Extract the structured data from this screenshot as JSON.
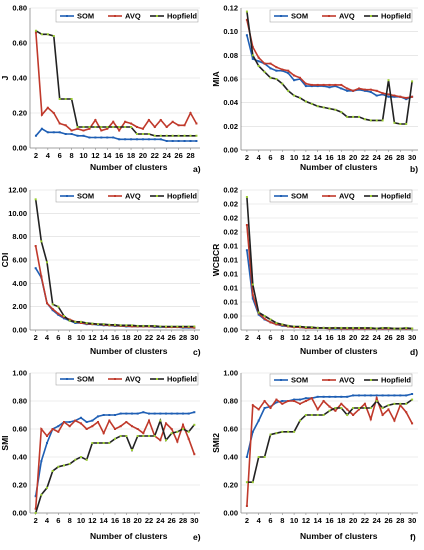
{
  "chart_data": [
    {
      "type": "line",
      "panel_label": "a)",
      "ylabel": "J",
      "xlabel": "Number of clusters",
      "ylim": [
        0,
        0.8
      ],
      "yticks": [
        "0.00",
        "0.20",
        "0.40",
        "0.60",
        "0.80"
      ],
      "ytick_values": [
        0,
        0.2,
        0.4,
        0.6,
        0.8
      ],
      "xlim": [
        1,
        29.6
      ],
      "xticks": [
        "2",
        "4",
        "6",
        "8",
        "10",
        "12",
        "14",
        "16",
        "18",
        "20",
        "22",
        "24",
        "26",
        "28"
      ],
      "xtick_values": [
        2,
        4,
        6,
        8,
        10,
        12,
        14,
        16,
        18,
        20,
        22,
        24,
        26,
        28
      ],
      "legend": [
        "SOM",
        "AVQ",
        "Hopfield"
      ],
      "legend_placement": "top-right",
      "x": [
        2,
        3,
        4,
        5,
        6,
        7,
        8,
        9,
        10,
        11,
        12,
        13,
        14,
        15,
        16,
        17,
        18,
        19,
        20,
        21,
        22,
        23,
        24,
        25,
        26,
        27,
        28,
        29
      ],
      "series": [
        {
          "name": "SOM",
          "color": "#1f5fb4",
          "values": [
            0.07,
            0.11,
            0.09,
            0.09,
            0.09,
            0.08,
            0.08,
            0.07,
            0.07,
            0.06,
            0.06,
            0.06,
            0.06,
            0.06,
            0.05,
            0.05,
            0.05,
            0.05,
            0.05,
            0.05,
            0.05,
            0.05,
            0.04,
            0.04,
            0.04,
            0.04,
            0.04,
            0.04
          ]
        },
        {
          "name": "AVQ",
          "color": "#c0392b",
          "values": [
            0.66,
            0.19,
            0.23,
            0.2,
            0.14,
            0.13,
            0.1,
            0.11,
            0.1,
            0.11,
            0.16,
            0.1,
            0.11,
            0.15,
            0.1,
            0.15,
            0.14,
            0.12,
            0.11,
            0.16,
            0.12,
            0.16,
            0.12,
            0.15,
            0.13,
            0.13,
            0.2,
            0.14
          ]
        },
        {
          "name": "Hopfield",
          "color": "#222222",
          "values": [
            0.67,
            0.65,
            0.65,
            0.64,
            0.28,
            0.28,
            0.28,
            0.12,
            0.12,
            0.12,
            0.12,
            0.12,
            0.12,
            0.12,
            0.12,
            0.12,
            0.12,
            0.08,
            0.08,
            0.08,
            0.07,
            0.07,
            0.07,
            0.07,
            0.07,
            0.07,
            0.07,
            0.07
          ]
        }
      ]
    },
    {
      "type": "line",
      "panel_label": "b)",
      "ylabel": "MIA",
      "xlabel": "Number of clusters",
      "ylim": [
        0,
        0.12
      ],
      "yticks": [
        "0.00",
        "0.02",
        "0.04",
        "0.06",
        "0.08",
        "0.10",
        "0.12"
      ],
      "ytick_values": [
        0,
        0.02,
        0.04,
        0.06,
        0.08,
        0.1,
        0.12
      ],
      "xlim": [
        1,
        31
      ],
      "xticks": [
        "2",
        "4",
        "6",
        "8",
        "10",
        "12",
        "14",
        "16",
        "18",
        "20",
        "22",
        "24",
        "26",
        "28",
        "30"
      ],
      "xtick_values": [
        2,
        4,
        6,
        8,
        10,
        12,
        14,
        16,
        18,
        20,
        22,
        24,
        26,
        28,
        30
      ],
      "legend": [
        "SOM",
        "AVQ",
        "Hopfield"
      ],
      "legend_placement": "top-right",
      "x": [
        2,
        3,
        4,
        5,
        6,
        7,
        8,
        9,
        10,
        11,
        12,
        13,
        14,
        15,
        16,
        17,
        18,
        19,
        20,
        21,
        22,
        23,
        24,
        25,
        26,
        27,
        28,
        29,
        30
      ],
      "series": [
        {
          "name": "SOM",
          "color": "#1f5fb4",
          "values": [
            0.097,
            0.077,
            0.075,
            0.073,
            0.069,
            0.067,
            0.067,
            0.065,
            0.059,
            0.06,
            0.054,
            0.054,
            0.054,
            0.054,
            0.053,
            0.054,
            0.052,
            0.05,
            0.05,
            0.051,
            0.05,
            0.049,
            0.046,
            0.047,
            0.045,
            0.045,
            0.045,
            0.043,
            0.045
          ]
        },
        {
          "name": "AVQ",
          "color": "#c0392b",
          "values": [
            0.11,
            0.087,
            0.078,
            0.073,
            0.073,
            0.07,
            0.068,
            0.067,
            0.063,
            0.061,
            0.056,
            0.055,
            0.055,
            0.055,
            0.055,
            0.055,
            0.055,
            0.052,
            0.05,
            0.052,
            0.051,
            0.051,
            0.05,
            0.048,
            0.047,
            0.046,
            0.045,
            0.044,
            0.045
          ]
        },
        {
          "name": "Hopfield",
          "color": "#222222",
          "values": [
            0.117,
            0.08,
            0.071,
            0.066,
            0.061,
            0.06,
            0.056,
            0.05,
            0.046,
            0.044,
            0.041,
            0.039,
            0.037,
            0.036,
            0.035,
            0.034,
            0.032,
            0.028,
            0.028,
            0.028,
            0.026,
            0.025,
            0.025,
            0.025,
            0.059,
            0.023,
            0.022,
            0.022,
            0.058
          ]
        }
      ]
    },
    {
      "type": "line",
      "panel_label": "c)",
      "ylabel": "CDI",
      "xlabel": "Number of clusters",
      "ylim": [
        0,
        12
      ],
      "yticks": [
        "0.00",
        "2.00",
        "4.00",
        "6.00",
        "8.00",
        "10.00",
        "12.00"
      ],
      "ytick_values": [
        0,
        2,
        4,
        6,
        8,
        10,
        12
      ],
      "xlim": [
        1,
        31
      ],
      "xticks": [
        "2",
        "4",
        "6",
        "8",
        "10",
        "12",
        "14",
        "16",
        "18",
        "20",
        "22",
        "24",
        "26",
        "28",
        "30"
      ],
      "xtick_values": [
        2,
        4,
        6,
        8,
        10,
        12,
        14,
        16,
        18,
        20,
        22,
        24,
        26,
        28,
        30
      ],
      "legend": [
        "SOM",
        "AVQ",
        "Hopfield"
      ],
      "legend_placement": "top-right",
      "x": [
        2,
        3,
        4,
        5,
        6,
        7,
        8,
        9,
        10,
        11,
        12,
        13,
        14,
        15,
        16,
        17,
        18,
        19,
        20,
        21,
        22,
        23,
        24,
        25,
        26,
        27,
        28,
        29,
        30
      ],
      "series": [
        {
          "name": "SOM",
          "color": "#1f5fb4",
          "values": [
            5.3,
            4.5,
            2.3,
            1.7,
            1.3,
            1.0,
            0.8,
            0.6,
            0.6,
            0.5,
            0.5,
            0.45,
            0.4,
            0.4,
            0.35,
            0.35,
            0.3,
            0.3,
            0.3,
            0.3,
            0.3,
            0.25,
            0.25,
            0.25,
            0.25,
            0.25,
            0.2,
            0.2,
            0.2
          ]
        },
        {
          "name": "AVQ",
          "color": "#c0392b",
          "values": [
            7.2,
            4.6,
            2.3,
            1.8,
            1.4,
            1.1,
            0.9,
            0.7,
            0.6,
            0.55,
            0.5,
            0.5,
            0.45,
            0.4,
            0.4,
            0.35,
            0.35,
            0.3,
            0.3,
            0.3,
            0.3,
            0.3,
            0.3,
            0.25,
            0.25,
            0.25,
            0.25,
            0.25,
            0.2
          ]
        },
        {
          "name": "Hopfield",
          "color": "#222222",
          "values": [
            11.2,
            7.6,
            5.8,
            2.2,
            2.0,
            1.2,
            0.8,
            0.7,
            0.7,
            0.6,
            0.55,
            0.5,
            0.5,
            0.45,
            0.45,
            0.4,
            0.4,
            0.4,
            0.35,
            0.35,
            0.35,
            0.35,
            0.3,
            0.3,
            0.3,
            0.3,
            0.3,
            0.3,
            0.3
          ]
        }
      ]
    },
    {
      "type": "line",
      "panel_label": "d)",
      "ylabel": "WCBCR",
      "xlabel": "Number of clusters",
      "ylim": [
        0,
        0.02
      ],
      "yticks": [
        "0.00",
        "0.00",
        "0.01",
        "0.01",
        "0.01",
        "0.01",
        "0.01",
        "0.02",
        "0.02",
        "0.02",
        "0.02"
      ],
      "ytick_values": [
        0,
        0.002,
        0.004,
        0.006,
        0.008,
        0.01,
        0.012,
        0.014,
        0.016,
        0.018,
        0.02
      ],
      "xlim": [
        1,
        31
      ],
      "xticks": [
        "2",
        "4",
        "6",
        "8",
        "10",
        "12",
        "14",
        "16",
        "18",
        "20",
        "22",
        "24",
        "26",
        "28",
        "30"
      ],
      "xtick_values": [
        2,
        4,
        6,
        8,
        10,
        12,
        14,
        16,
        18,
        20,
        22,
        24,
        26,
        28,
        30
      ],
      "legend": [
        "SOM",
        "AVQ",
        "Hopfield"
      ],
      "legend_placement": "top-right",
      "x": [
        2,
        3,
        4,
        5,
        6,
        7,
        8,
        9,
        10,
        11,
        12,
        13,
        14,
        15,
        16,
        17,
        18,
        19,
        20,
        21,
        22,
        23,
        24,
        25,
        26,
        27,
        28,
        29,
        30
      ],
      "series": [
        {
          "name": "SOM",
          "color": "#1f5fb4",
          "values": [
            0.0114,
            0.0045,
            0.0022,
            0.0015,
            0.0011,
            0.0008,
            0.0006,
            0.0005,
            0.0004,
            0.0004,
            0.0003,
            0.0003,
            0.0003,
            0.0003,
            0.0002,
            0.0002,
            0.0002,
            0.0002,
            0.0002,
            0.0002,
            0.0002,
            0.0002,
            0.0002,
            0.0002,
            0.0002,
            0.0002,
            0.0002,
            0.0002,
            0.0002
          ]
        },
        {
          "name": "AVQ",
          "color": "#c0392b",
          "values": [
            0.015,
            0.005,
            0.0024,
            0.0016,
            0.0011,
            0.0008,
            0.0007,
            0.0005,
            0.0004,
            0.0004,
            0.0003,
            0.0003,
            0.0003,
            0.0003,
            0.0002,
            0.0003,
            0.0002,
            0.0002,
            0.0002,
            0.0002,
            0.0002,
            0.0002,
            0.0002,
            0.0002,
            0.0002,
            0.0002,
            0.0002,
            0.0002,
            0.0002
          ]
        },
        {
          "name": "Hopfield",
          "color": "#222222",
          "values": [
            0.019,
            0.0065,
            0.0025,
            0.002,
            0.0015,
            0.001,
            0.0008,
            0.0006,
            0.0005,
            0.0005,
            0.0004,
            0.0004,
            0.0003,
            0.0003,
            0.0003,
            0.0003,
            0.0003,
            0.0003,
            0.0003,
            0.0003,
            0.0003,
            0.0003,
            0.0002,
            0.0003,
            0.0003,
            0.0002,
            0.0002,
            0.0003,
            0.0002
          ]
        }
      ]
    },
    {
      "type": "line",
      "panel_label": "e)",
      "ylabel": "SMI",
      "xlabel": "Number of clusters",
      "ylim": [
        0,
        1.0
      ],
      "yticks": [
        "0.00",
        "0.20",
        "0.40",
        "0.60",
        "0.80",
        "1.00"
      ],
      "ytick_values": [
        0,
        0.2,
        0.4,
        0.6,
        0.8,
        1.0
      ],
      "xlim": [
        1,
        31
      ],
      "xticks": [
        "2",
        "4",
        "6",
        "8",
        "10",
        "12",
        "14",
        "16",
        "18",
        "20",
        "22",
        "24",
        "26",
        "28",
        "30"
      ],
      "xtick_values": [
        2,
        4,
        6,
        8,
        10,
        12,
        14,
        16,
        18,
        20,
        22,
        24,
        26,
        28,
        30
      ],
      "legend": [
        "SOM",
        "AVQ",
        "Hopfield"
      ],
      "legend_placement": "top-right",
      "x": [
        2,
        3,
        4,
        5,
        6,
        7,
        8,
        9,
        10,
        11,
        12,
        13,
        14,
        15,
        16,
        17,
        18,
        19,
        20,
        21,
        22,
        23,
        24,
        25,
        26,
        27,
        28,
        29,
        30
      ],
      "series": [
        {
          "name": "SOM",
          "color": "#1f5fb4",
          "values": [
            0.12,
            0.37,
            0.5,
            0.6,
            0.62,
            0.65,
            0.65,
            0.66,
            0.68,
            0.65,
            0.66,
            0.69,
            0.7,
            0.7,
            0.7,
            0.71,
            0.71,
            0.71,
            0.71,
            0.72,
            0.71,
            0.71,
            0.71,
            0.71,
            0.71,
            0.71,
            0.71,
            0.71,
            0.72
          ]
        },
        {
          "name": "AVQ",
          "color": "#c0392b",
          "values": [
            0.03,
            0.6,
            0.55,
            0.6,
            0.58,
            0.65,
            0.62,
            0.66,
            0.64,
            0.6,
            0.62,
            0.65,
            0.57,
            0.66,
            0.6,
            0.62,
            0.65,
            0.62,
            0.6,
            0.57,
            0.66,
            0.55,
            0.52,
            0.64,
            0.6,
            0.51,
            0.63,
            0.53,
            0.42
          ]
        },
        {
          "name": "Hopfield",
          "color": "#222222",
          "values": [
            0.0,
            0.13,
            0.18,
            0.3,
            0.33,
            0.34,
            0.35,
            0.38,
            0.4,
            0.38,
            0.5,
            0.5,
            0.5,
            0.5,
            0.53,
            0.55,
            0.55,
            0.45,
            0.55,
            0.55,
            0.55,
            0.55,
            0.66,
            0.52,
            0.57,
            0.58,
            0.6,
            0.58,
            0.63
          ]
        }
      ]
    },
    {
      "type": "line",
      "panel_label": "f)",
      "ylabel": "SMI2",
      "xlabel": "Number of clusters",
      "ylim": [
        0,
        1.0
      ],
      "yticks": [
        "0.00",
        "0.20",
        "0.40",
        "0.60",
        "0.80",
        "1.00"
      ],
      "ytick_values": [
        0,
        0.2,
        0.4,
        0.6,
        0.8,
        1.0
      ],
      "xlim": [
        1,
        31
      ],
      "xticks": [
        "2",
        "4",
        "6",
        "8",
        "10",
        "12",
        "14",
        "16",
        "18",
        "20",
        "22",
        "24",
        "26",
        "28",
        "30"
      ],
      "xtick_values": [
        2,
        4,
        6,
        8,
        10,
        12,
        14,
        16,
        18,
        20,
        22,
        24,
        26,
        28,
        30
      ],
      "legend": [
        "SOM",
        "AVQ",
        "Hopfield"
      ],
      "legend_placement": "top",
      "x": [
        2,
        3,
        4,
        5,
        6,
        7,
        8,
        9,
        10,
        11,
        12,
        13,
        14,
        15,
        16,
        17,
        18,
        19,
        20,
        21,
        22,
        23,
        24,
        25,
        26,
        27,
        28,
        29,
        30
      ],
      "series": [
        {
          "name": "SOM",
          "color": "#1f5fb4",
          "values": [
            0.4,
            0.58,
            0.66,
            0.75,
            0.76,
            0.79,
            0.8,
            0.8,
            0.81,
            0.81,
            0.82,
            0.82,
            0.83,
            0.83,
            0.83,
            0.83,
            0.83,
            0.83,
            0.84,
            0.84,
            0.84,
            0.84,
            0.84,
            0.84,
            0.84,
            0.84,
            0.84,
            0.84,
            0.85
          ]
        },
        {
          "name": "AVQ",
          "color": "#c0392b",
          "values": [
            0.05,
            0.77,
            0.74,
            0.8,
            0.75,
            0.81,
            0.78,
            0.8,
            0.8,
            0.78,
            0.8,
            0.82,
            0.74,
            0.8,
            0.76,
            0.73,
            0.78,
            0.74,
            0.7,
            0.74,
            0.78,
            0.67,
            0.82,
            0.7,
            0.74,
            0.66,
            0.77,
            0.72,
            0.64
          ]
        },
        {
          "name": "Hopfield",
          "color": "#222222",
          "values": [
            0.22,
            0.22,
            0.4,
            0.4,
            0.56,
            0.57,
            0.58,
            0.58,
            0.58,
            0.66,
            0.7,
            0.7,
            0.7,
            0.7,
            0.73,
            0.75,
            0.75,
            0.7,
            0.75,
            0.75,
            0.75,
            0.75,
            0.8,
            0.75,
            0.77,
            0.78,
            0.78,
            0.78,
            0.81
          ]
        }
      ]
    }
  ]
}
